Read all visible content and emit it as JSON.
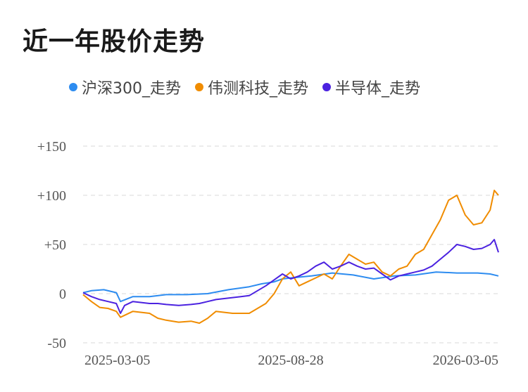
{
  "title": "近一年股价走势",
  "legend": [
    {
      "label": "沪深300_走势",
      "color": "#2d8cf0"
    },
    {
      "label": "伟测科技_走势",
      "color": "#f08c00"
    },
    {
      "label": "半导体_走势",
      "color": "#4b22e0"
    }
  ],
  "chart_data": {
    "type": "line",
    "ylim": [
      -50,
      150
    ],
    "yticks": [
      150,
      100,
      50,
      0,
      -50
    ],
    "ytick_labels": [
      "+150",
      "+100",
      "+50",
      "0",
      "-50"
    ],
    "xtick_labels": [
      "2025-03-05",
      "2025-08-28",
      "2026-03-05"
    ],
    "grid": true,
    "series": [
      {
        "name": "沪深300_走势",
        "color": "#2d8cf0",
        "x": [
          0,
          0.02,
          0.05,
          0.08,
          0.09,
          0.12,
          0.16,
          0.2,
          0.25,
          0.3,
          0.35,
          0.4,
          0.43,
          0.46,
          0.48,
          0.5,
          0.55,
          0.6,
          0.65,
          0.7,
          0.75,
          0.8,
          0.85,
          0.9,
          0.95,
          0.98,
          1.0
        ],
        "values": [
          1,
          3,
          4,
          1,
          -8,
          -3,
          -3,
          -1,
          -1,
          0,
          4,
          7,
          10,
          12,
          15,
          16,
          18,
          21,
          19,
          15,
          18,
          19,
          22,
          21,
          21,
          20,
          18
        ]
      },
      {
        "name": "伟测科技_走势",
        "color": "#f08c00",
        "x": [
          0,
          0.02,
          0.04,
          0.06,
          0.08,
          0.09,
          0.1,
          0.12,
          0.14,
          0.16,
          0.18,
          0.2,
          0.23,
          0.26,
          0.28,
          0.3,
          0.32,
          0.34,
          0.36,
          0.38,
          0.4,
          0.42,
          0.44,
          0.46,
          0.48,
          0.5,
          0.52,
          0.54,
          0.56,
          0.58,
          0.6,
          0.62,
          0.64,
          0.66,
          0.68,
          0.7,
          0.72,
          0.74,
          0.76,
          0.78,
          0.8,
          0.82,
          0.84,
          0.86,
          0.88,
          0.9,
          0.92,
          0.94,
          0.96,
          0.98,
          0.99,
          1.0
        ],
        "values": [
          -1,
          -8,
          -14,
          -15,
          -18,
          -24,
          -22,
          -18,
          -19,
          -20,
          -25,
          -27,
          -29,
          -28,
          -30,
          -25,
          -18,
          -19,
          -20,
          -20,
          -20,
          -15,
          -10,
          0,
          15,
          22,
          8,
          12,
          16,
          20,
          15,
          28,
          40,
          35,
          30,
          32,
          22,
          18,
          25,
          28,
          40,
          45,
          60,
          75,
          95,
          100,
          80,
          70,
          72,
          85,
          105,
          100
        ]
      },
      {
        "name": "半导体_走势",
        "color": "#4b22e0",
        "x": [
          0,
          0.02,
          0.04,
          0.06,
          0.08,
          0.09,
          0.1,
          0.12,
          0.14,
          0.16,
          0.18,
          0.2,
          0.23,
          0.26,
          0.28,
          0.3,
          0.32,
          0.34,
          0.36,
          0.38,
          0.4,
          0.42,
          0.44,
          0.46,
          0.48,
          0.5,
          0.52,
          0.54,
          0.56,
          0.58,
          0.6,
          0.62,
          0.64,
          0.66,
          0.68,
          0.7,
          0.72,
          0.74,
          0.76,
          0.78,
          0.8,
          0.82,
          0.84,
          0.86,
          0.88,
          0.9,
          0.92,
          0.94,
          0.96,
          0.98,
          0.99,
          1.0
        ],
        "values": [
          1,
          -3,
          -6,
          -8,
          -10,
          -20,
          -12,
          -8,
          -9,
          -10,
          -10,
          -11,
          -12,
          -11,
          -10,
          -8,
          -6,
          -5,
          -4,
          -3,
          -2,
          3,
          8,
          14,
          20,
          15,
          18,
          22,
          28,
          32,
          25,
          28,
          32,
          28,
          25,
          26,
          20,
          14,
          18,
          20,
          22,
          24,
          28,
          35,
          42,
          50,
          48,
          45,
          46,
          50,
          55,
          42
        ]
      }
    ]
  }
}
